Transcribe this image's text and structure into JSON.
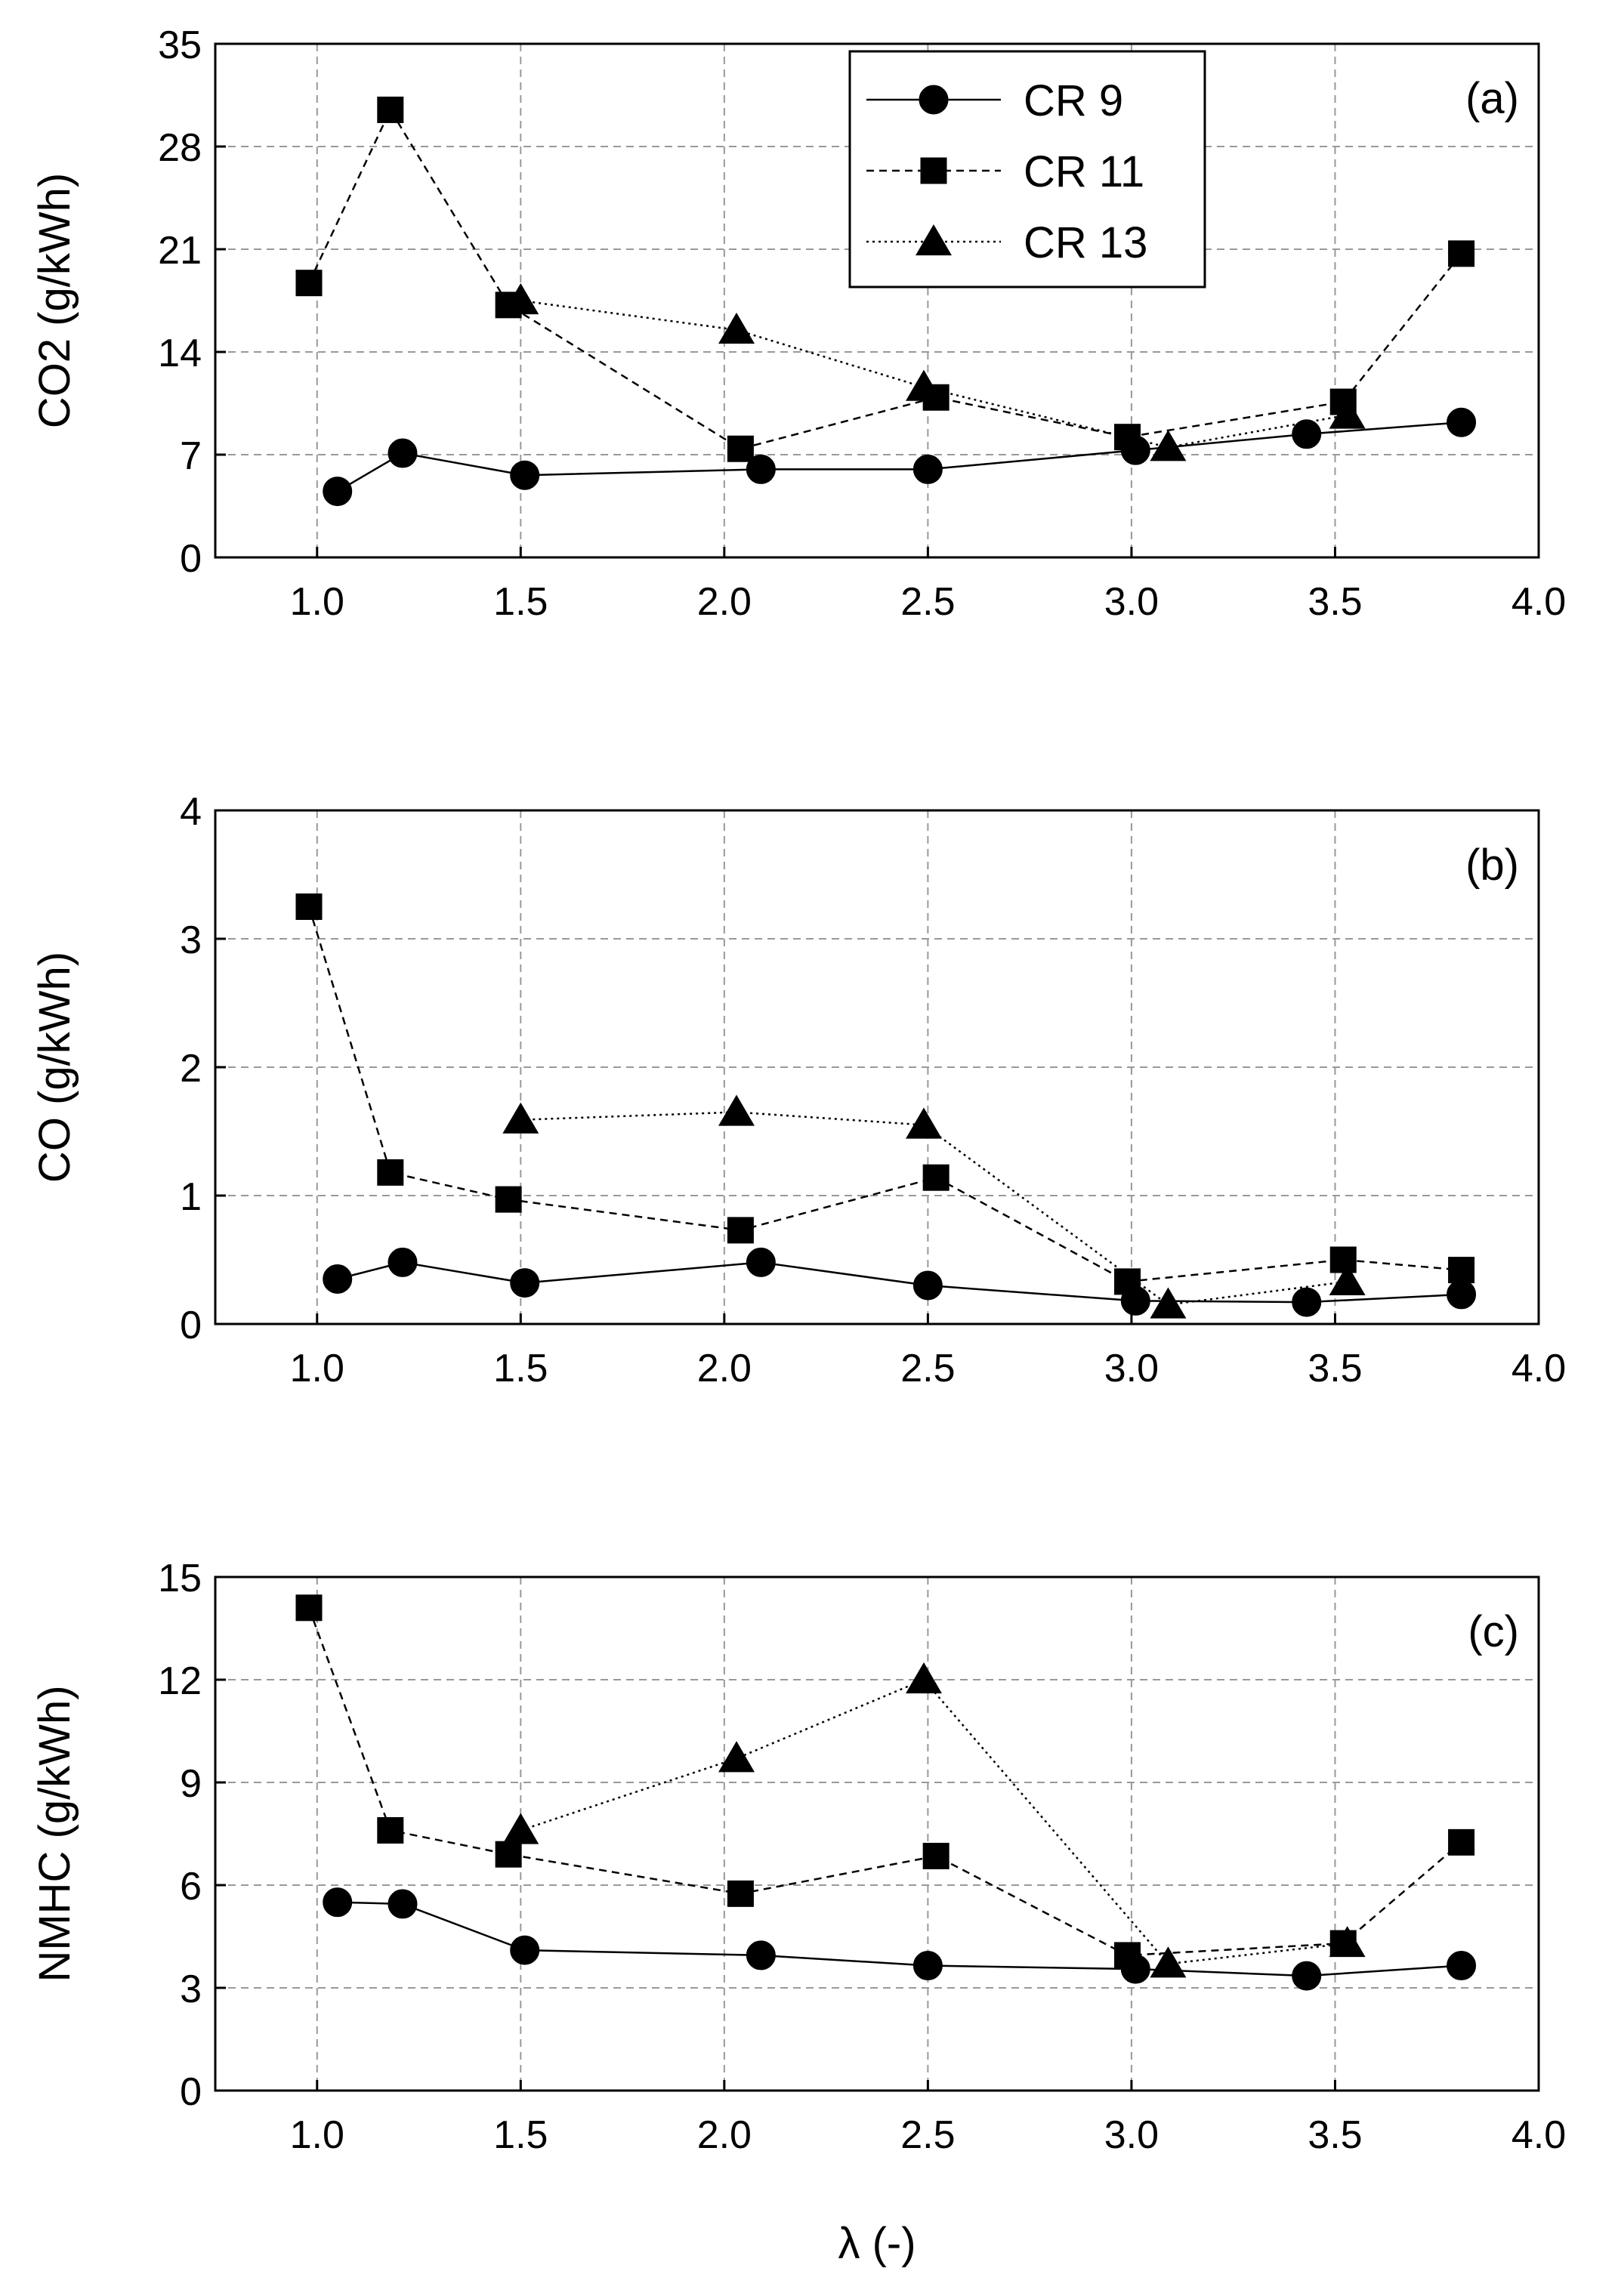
{
  "chart_data": [
    {
      "type": "line",
      "panel": "(a)",
      "ylabel": "CO2 (g/kWh)",
      "xlabel": "",
      "xlim": [
        0.75,
        4.0
      ],
      "ylim": [
        0,
        35
      ],
      "xticks": [
        "1.0",
        "1.5",
        "2.0",
        "2.5",
        "3.0",
        "3.5",
        "4.0"
      ],
      "yticks": [
        "0",
        "7",
        "14",
        "21",
        "28",
        "35"
      ],
      "grid": true,
      "legend": {
        "position": "top-center"
      },
      "series": [
        {
          "name": "CR 9",
          "marker": "circle",
          "line": "solid",
          "x": [
            1.05,
            1.21,
            1.51,
            2.09,
            2.5,
            3.01,
            3.43,
            3.81
          ],
          "y": [
            4.5,
            7.1,
            5.6,
            6.0,
            6.0,
            7.3,
            8.4,
            9.2
          ]
        },
        {
          "name": "CR 11",
          "marker": "square",
          "line": "dashed",
          "x": [
            0.98,
            1.18,
            1.47,
            2.04,
            2.52,
            2.99,
            3.52,
            3.81
          ],
          "y": [
            18.7,
            30.5,
            17.2,
            7.4,
            10.9,
            8.2,
            10.6,
            20.7
          ]
        },
        {
          "name": "CR 13",
          "marker": "triangle",
          "line": "dotted",
          "x": [
            1.5,
            2.03,
            2.49,
            3.09,
            3.53
          ],
          "y": [
            17.5,
            15.5,
            11.6,
            7.5,
            9.7
          ]
        }
      ]
    },
    {
      "type": "line",
      "panel": "(b)",
      "ylabel": "CO (g/kWh)",
      "xlabel": "",
      "xlim": [
        0.75,
        4.0
      ],
      "ylim": [
        0,
        4
      ],
      "xticks": [
        "1.0",
        "1.5",
        "2.0",
        "2.5",
        "3.0",
        "3.5",
        "4.0"
      ],
      "yticks": [
        "0",
        "1",
        "2",
        "3",
        "4"
      ],
      "grid": true,
      "series": [
        {
          "name": "CR 9",
          "marker": "circle",
          "line": "solid",
          "x": [
            1.05,
            1.21,
            1.51,
            2.09,
            2.5,
            3.01,
            3.43,
            3.81
          ],
          "y": [
            0.35,
            0.48,
            0.32,
            0.48,
            0.3,
            0.18,
            0.17,
            0.23
          ]
        },
        {
          "name": "CR 11",
          "marker": "square",
          "line": "dashed",
          "x": [
            0.98,
            1.18,
            1.47,
            2.04,
            2.52,
            2.99,
            3.52,
            3.81
          ],
          "y": [
            3.25,
            1.18,
            0.97,
            0.73,
            1.14,
            0.33,
            0.5,
            0.42
          ]
        },
        {
          "name": "CR 13",
          "marker": "triangle",
          "line": "dotted",
          "x": [
            1.5,
            2.03,
            2.49,
            3.09,
            3.53
          ],
          "y": [
            1.59,
            1.65,
            1.55,
            0.15,
            0.33
          ]
        }
      ]
    },
    {
      "type": "line",
      "panel": "(c)",
      "ylabel": "NMHC (g/kWh)",
      "xlabel": "λ (-)",
      "xlim": [
        0.75,
        4.0
      ],
      "ylim": [
        0,
        15
      ],
      "xticks": [
        "1.0",
        "1.5",
        "2.0",
        "2.5",
        "3.0",
        "3.5",
        "4.0"
      ],
      "yticks": [
        "0",
        "3",
        "6",
        "9",
        "12",
        "15"
      ],
      "grid": true,
      "series": [
        {
          "name": "CR 9",
          "marker": "circle",
          "line": "solid",
          "x": [
            1.05,
            1.21,
            1.51,
            2.09,
            2.5,
            3.01,
            3.43,
            3.81
          ],
          "y": [
            5.5,
            5.45,
            4.1,
            3.95,
            3.65,
            3.55,
            3.35,
            3.65
          ]
        },
        {
          "name": "CR 11",
          "marker": "square",
          "line": "dashed",
          "x": [
            0.98,
            1.18,
            1.47,
            2.04,
            2.52,
            2.99,
            3.52,
            3.81
          ],
          "y": [
            14.1,
            7.6,
            6.9,
            5.75,
            6.85,
            3.95,
            4.3,
            7.25
          ]
        },
        {
          "name": "CR 13",
          "marker": "triangle",
          "line": "dotted",
          "x": [
            1.5,
            2.03,
            2.49,
            3.09,
            3.53
          ],
          "y": [
            7.6,
            9.7,
            12.0,
            3.7,
            4.3
          ]
        }
      ]
    }
  ]
}
